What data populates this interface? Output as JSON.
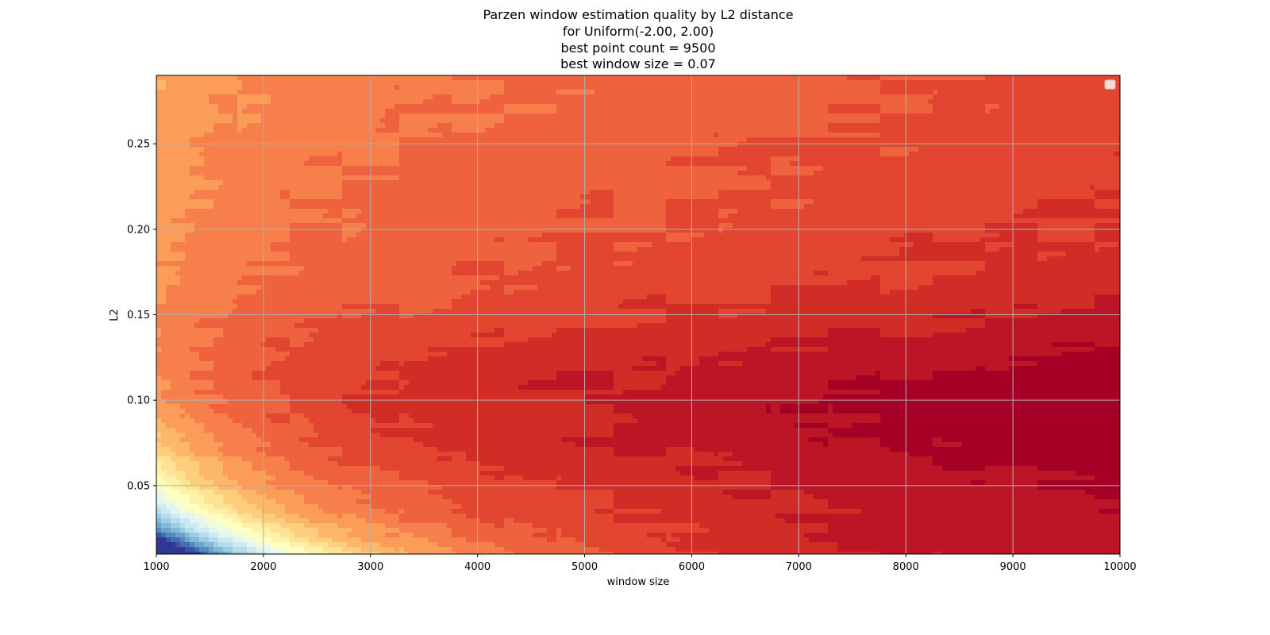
{
  "chart_data": {
    "type": "contour",
    "title": [
      "Parzen window estimation quality by L2 distance",
      "for Uniform(-2.00, 2.00)",
      "best point count = 9500",
      "best window size = 0.07"
    ],
    "xlabel": "window size",
    "ylabel": "L2",
    "xlim": [
      1000,
      10000
    ],
    "ylim": [
      0.01,
      0.29
    ],
    "x_ticks": [
      1000,
      2000,
      3000,
      4000,
      5000,
      6000,
      7000,
      8000,
      9000,
      10000
    ],
    "x_tick_labels": [
      "1000",
      "2000",
      "3000",
      "4000",
      "5000",
      "6000",
      "7000",
      "8000",
      "9000",
      "10000"
    ],
    "y_ticks": [
      0.05,
      0.1,
      0.15,
      0.2,
      0.25
    ],
    "y_tick_labels": [
      "0.05",
      "0.10",
      "0.15",
      "0.20",
      "0.25"
    ],
    "grid": true,
    "legend": "top-right (empty)",
    "colormap": "RdYlBu_r",
    "best_point_count": 9500,
    "best_window_size": 0.07
  }
}
